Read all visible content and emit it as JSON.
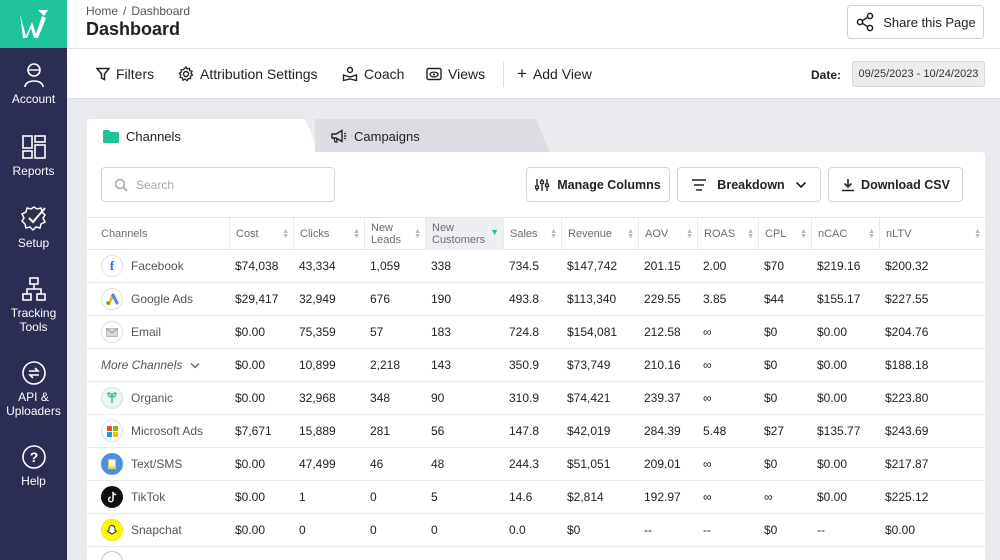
{
  "sidebar": {
    "items": [
      {
        "label": "Account",
        "icon": "account-icon"
      },
      {
        "label": "Reports",
        "icon": "reports-grid-icon"
      },
      {
        "label": "Setup",
        "icon": "setup-gear-check-icon"
      },
      {
        "label": "Tracking Tools",
        "icon": "tracking-tools-icon"
      },
      {
        "label": "API & Uploaders",
        "icon": "api-sync-icon"
      },
      {
        "label": "Help",
        "icon": "help-question-icon"
      }
    ]
  },
  "header": {
    "breadcrumb": {
      "home": "Home",
      "separator": "/",
      "current": "Dashboard"
    },
    "title": "Dashboard",
    "share_label": "Share this Page"
  },
  "toolbar": {
    "filters": "Filters",
    "attribution": "Attribution Settings",
    "coach": "Coach",
    "views": "Views",
    "add_view": "Add View",
    "date_label": "Date:",
    "date_range": "09/25/2023 - 10/24/2023"
  },
  "tabs": [
    {
      "label": "Channels",
      "active": true
    },
    {
      "label": "Campaigns",
      "active": false
    }
  ],
  "panel": {
    "search_placeholder": "Search",
    "manage_columns": "Manage Columns",
    "breakdown": "Breakdown",
    "download_csv": "Download CSV"
  },
  "table": {
    "columns": [
      "Channels",
      "Cost",
      "Clicks",
      "New Leads",
      "New Customers",
      "Sales",
      "Revenue",
      "AOV",
      "ROAS",
      "CPL",
      "nCAC",
      "nLTV"
    ],
    "sorted_column": "New Customers",
    "rows": [
      {
        "channel": "Facebook",
        "icon": "facebook-icon",
        "cells": [
          "$74,038",
          "43,334",
          "1,059",
          "338",
          "734.5",
          "$147,742",
          "201.15",
          "2.00",
          "$70",
          "$219.16",
          "$200.32"
        ]
      },
      {
        "channel": "Google Ads",
        "icon": "google-ads-icon",
        "cells": [
          "$29,417",
          "32,949",
          "676",
          "190",
          "493.8",
          "$113,340",
          "229.55",
          "3.85",
          "$44",
          "$155.17",
          "$227.55"
        ]
      },
      {
        "channel": "Email",
        "icon": "email-icon",
        "cells": [
          "$0.00",
          "75,359",
          "57",
          "183",
          "724.8",
          "$154,081",
          "212.58",
          "∞",
          "$0",
          "$0.00",
          "$204.76"
        ]
      },
      {
        "channel": "More Channels",
        "icon": "chevron-down-icon",
        "more": true,
        "cells": [
          "$0.00",
          "10,899",
          "2,218",
          "143",
          "350.9",
          "$73,749",
          "210.16",
          "∞",
          "$0",
          "$0.00",
          "$188.18"
        ]
      },
      {
        "channel": "Organic",
        "icon": "organic-icon",
        "cells": [
          "$0.00",
          "32,968",
          "348",
          "90",
          "310.9",
          "$74,421",
          "239.37",
          "∞",
          "$0",
          "$0.00",
          "$223.80"
        ]
      },
      {
        "channel": "Microsoft Ads",
        "icon": "microsoft-ads-icon",
        "cells": [
          "$7,671",
          "15,889",
          "281",
          "56",
          "147.8",
          "$42,019",
          "284.39",
          "5.48",
          "$27",
          "$135.77",
          "$243.69"
        ]
      },
      {
        "channel": "Text/SMS",
        "icon": "sms-icon",
        "cells": [
          "$0.00",
          "47,499",
          "46",
          "48",
          "244.3",
          "$51,051",
          "209.01",
          "∞",
          "$0",
          "$0.00",
          "$217.87"
        ]
      },
      {
        "channel": "TikTok",
        "icon": "tiktok-icon",
        "cells": [
          "$0.00",
          "1",
          "0",
          "5",
          "14.6",
          "$2,814",
          "192.97",
          "∞",
          "∞",
          "$0.00",
          "$225.12"
        ]
      },
      {
        "channel": "Snapchat",
        "icon": "snapchat-icon",
        "cells": [
          "$0.00",
          "0",
          "0",
          "0",
          "0.0",
          "$0",
          "--",
          "--",
          "$0",
          "--",
          "$0.00"
        ]
      }
    ]
  },
  "colors": {
    "sidebar": "#2b2d52",
    "brand": "#1ec39a",
    "facebook": "#1877f2",
    "snapchat": "#fffc00"
  }
}
